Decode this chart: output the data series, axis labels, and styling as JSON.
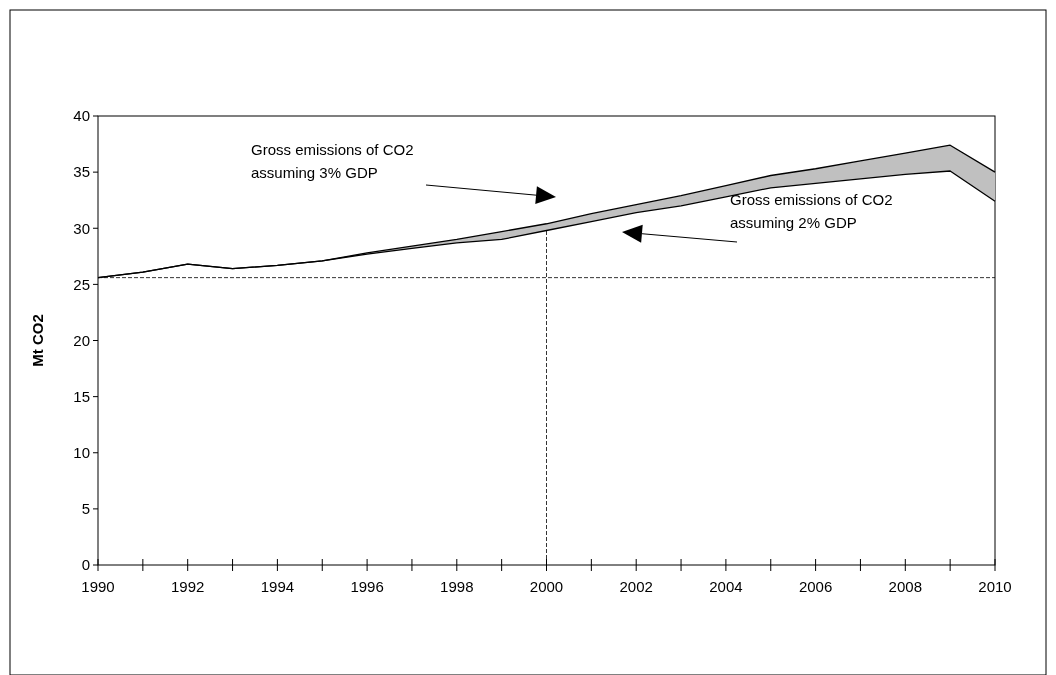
{
  "chart_data": {
    "type": "line",
    "ylabel": "Mt CO2",
    "x": [
      1990,
      1991,
      1992,
      1993,
      1994,
      1995,
      1996,
      1997,
      1998,
      1999,
      2000,
      2001,
      2002,
      2003,
      2004,
      2005,
      2006,
      2007,
      2008,
      2009,
      2010
    ],
    "series": [
      {
        "color": "#000000",
        "values": [
          25.6,
          26.1,
          26.8,
          26.4,
          26.7,
          27.1,
          27.8,
          28.4,
          29.0,
          29.7,
          30.4,
          31.3,
          32.1,
          32.9,
          33.8,
          34.7,
          35.3,
          36.0,
          36.7,
          37.4,
          35.0
        ],
        "lower": [
          25.6,
          26.1,
          26.8,
          26.4,
          26.7,
          27.1,
          27.7,
          28.2,
          28.7,
          29.0,
          29.8,
          30.6,
          31.4,
          32.0,
          32.8,
          33.6,
          34.0,
          34.4,
          34.8,
          35.1,
          32.4
        ],
        "upper": [
          25.6,
          26.1,
          26.8,
          26.4,
          26.7,
          27.1,
          27.8,
          28.4,
          29.0,
          29.7,
          30.4,
          31.3,
          32.1,
          32.9,
          33.8,
          34.7,
          35.3,
          36.0,
          36.7,
          37.4,
          35.0
        ]
      },
      {
        "color": "#000000",
        "values": [
          25.6,
          26.1,
          26.8,
          26.4,
          26.7,
          27.1,
          27.7,
          28.2,
          28.7,
          29.0,
          29.8,
          30.6,
          31.4,
          32.0,
          32.8,
          33.6,
          34.0,
          34.4,
          34.8,
          35.1,
          32.4
        ]
      }
    ],
    "annotations": [
      "Gross emissions of CO2\nassuming 3% GDP",
      "Gross emissions of CO2\nassuming 2% GDP"
    ],
    "ref_lines": [
      {
        "axis": "y",
        "value": 25.6,
        "line_style": "dashed"
      },
      {
        "axis": "x",
        "value": 2000,
        "line_style": "dashed"
      }
    ],
    "xlim": [
      1990,
      2010
    ],
    "xticks": [
      1990,
      {
        "value": 1991,
        "label": null
      },
      1992,
      {
        "value": 1993,
        "label": null
      },
      1994,
      {
        "value": 1995,
        "label": null
      },
      1996,
      {
        "value": 1997,
        "label": null
      },
      1998,
      {
        "value": 1999,
        "label": null
      },
      2000,
      {
        "value": 2001,
        "label": null
      },
      2002,
      {
        "value": 2003,
        "label": null
      },
      2004,
      {
        "value": 2005,
        "label": null
      },
      2006,
      {
        "value": 2007,
        "label": null
      },
      2008,
      {
        "value": 2009,
        "label": null
      },
      2010
    ],
    "ylim": [
      0,
      40
    ],
    "yticks": [
      0,
      5,
      10,
      15,
      20,
      25,
      30,
      35,
      40
    ],
    "grid": false,
    "marker": "none",
    "line_style": "solid"
  }
}
